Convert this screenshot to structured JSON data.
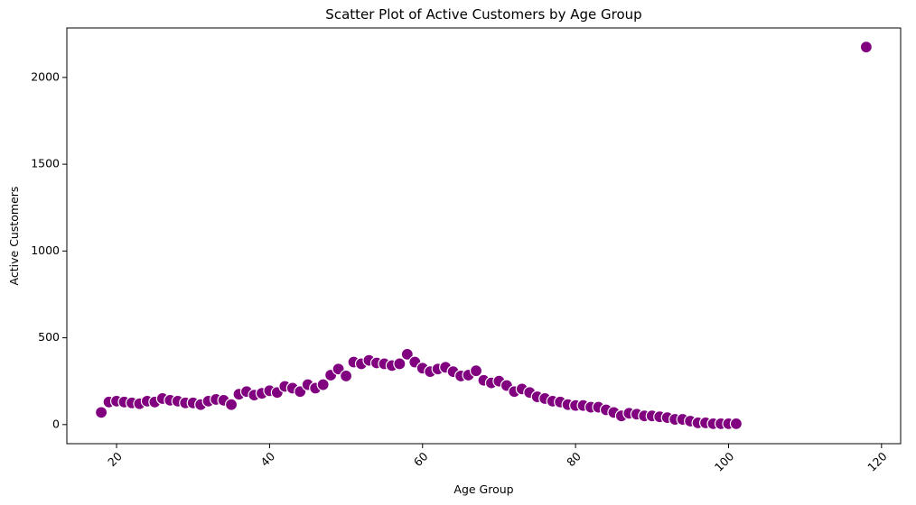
{
  "chart_data": {
    "type": "scatter",
    "title": "Scatter Plot of Active Customers by Age Group",
    "xlabel": "Age Group",
    "ylabel": "Active Customers",
    "xlim": [
      13.5,
      122.5
    ],
    "ylim": [
      -110,
      2285
    ],
    "xticks": [
      20,
      40,
      60,
      80,
      100,
      120
    ],
    "yticks": [
      0,
      500,
      1000,
      1500,
      2000
    ],
    "xtick_rotation": 45,
    "grid": false,
    "color": "#800080",
    "x": [
      18,
      19,
      20,
      21,
      22,
      23,
      24,
      25,
      26,
      27,
      28,
      29,
      30,
      31,
      32,
      33,
      34,
      35,
      36,
      37,
      38,
      39,
      40,
      41,
      42,
      43,
      44,
      45,
      46,
      47,
      48,
      49,
      50,
      51,
      52,
      53,
      54,
      55,
      56,
      57,
      58,
      59,
      60,
      61,
      62,
      63,
      64,
      65,
      66,
      67,
      68,
      69,
      70,
      71,
      72,
      73,
      74,
      75,
      76,
      77,
      78,
      79,
      80,
      81,
      82,
      83,
      84,
      85,
      86,
      87,
      88,
      89,
      90,
      91,
      92,
      93,
      94,
      95,
      96,
      97,
      98,
      99,
      100,
      101,
      118
    ],
    "y": [
      70,
      130,
      135,
      130,
      125,
      120,
      135,
      130,
      150,
      140,
      135,
      125,
      125,
      115,
      135,
      145,
      140,
      115,
      175,
      190,
      170,
      180,
      195,
      185,
      220,
      210,
      190,
      230,
      210,
      230,
      285,
      320,
      280,
      360,
      350,
      370,
      355,
      350,
      340,
      350,
      405,
      360,
      325,
      305,
      320,
      330,
      305,
      280,
      285,
      310,
      255,
      240,
      250,
      225,
      190,
      205,
      185,
      160,
      150,
      135,
      130,
      115,
      110,
      110,
      100,
      100,
      85,
      70,
      50,
      65,
      60,
      50,
      50,
      45,
      40,
      30,
      30,
      20,
      10,
      10,
      5,
      5,
      5,
      5,
      2175
    ]
  }
}
